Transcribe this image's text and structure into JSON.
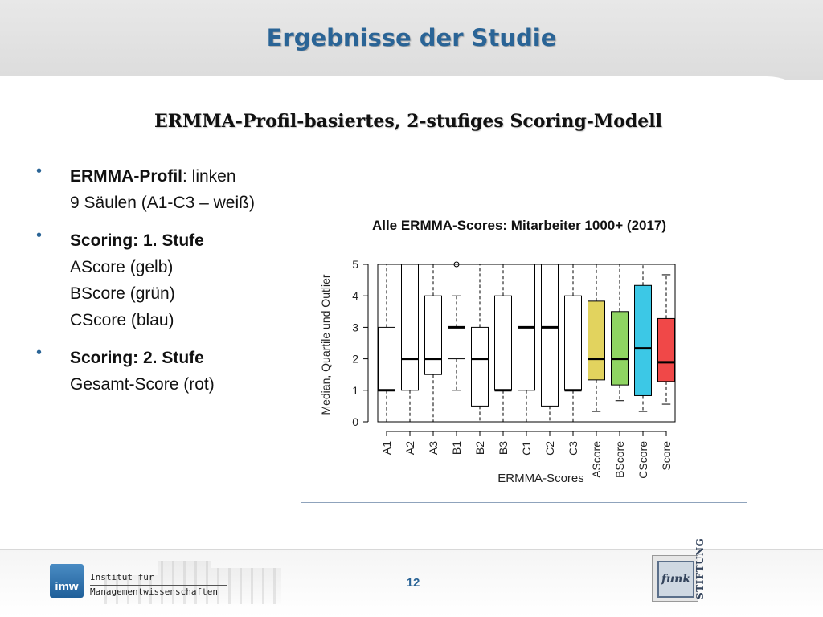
{
  "slide": {
    "title": "Ergebnisse der Studie",
    "subtitle": "ERMMA-Profil-basiertes, 2-stufiges Scoring-Modell",
    "page_number": "12"
  },
  "bullets": [
    {
      "lines": [
        {
          "bold": "ERMMA-Profil",
          "text": ": linken"
        },
        {
          "bold": "",
          "text": "9 Säulen (A1-C3 – weiß)"
        }
      ]
    },
    {
      "lines": [
        {
          "bold": "Scoring: 1. Stufe",
          "text": ""
        },
        {
          "bold": "",
          "text": "AScore (gelb)"
        },
        {
          "bold": "",
          "text": "BScore (grün)"
        },
        {
          "bold": "",
          "text": "CScore (blau)"
        }
      ]
    },
    {
      "lines": [
        {
          "bold": "Scoring: 2. Stufe",
          "text": ""
        },
        {
          "bold": "",
          "text": "Gesamt-Score (rot)"
        }
      ]
    }
  ],
  "footer": {
    "institute_logo_text": "imw",
    "institute_name_line1": "Institut für",
    "institute_name_line2": "Managementwissenschaften",
    "funk_logo_text": "funk",
    "stiftung_text": "STIFTUNG"
  },
  "chart_data": {
    "type": "boxplot",
    "title": "Alle ERMMA-Scores: Mitarbeiter 1000+ (2017)",
    "xlabel": "ERMMA-Scores",
    "ylabel": "Median, Quartile und Outlier",
    "ylim": [
      0,
      5
    ],
    "yticks": [
      0,
      1,
      2,
      3,
      4,
      5
    ],
    "categories": [
      "A1",
      "A2",
      "A3",
      "B1",
      "B2",
      "B3",
      "C1",
      "C2",
      "C3",
      "AScore",
      "BScore",
      "CScore",
      "Score"
    ],
    "boxes": [
      {
        "whisker_low": 0,
        "q1": 1,
        "median": 1,
        "q3": 3,
        "whisker_high": 5,
        "outliers": [],
        "color": "#ffffff"
      },
      {
        "whisker_low": 0,
        "q1": 1,
        "median": 2,
        "q3": 5,
        "whisker_high": 5,
        "outliers": [],
        "color": "#ffffff"
      },
      {
        "whisker_low": 0,
        "q1": 1.5,
        "median": 2,
        "q3": 4,
        "whisker_high": 5,
        "outliers": [],
        "color": "#ffffff"
      },
      {
        "whisker_low": 1,
        "q1": 2,
        "median": 3,
        "q3": 3,
        "whisker_high": 4,
        "outliers": [
          5
        ],
        "color": "#ffffff"
      },
      {
        "whisker_low": 0,
        "q1": 0.5,
        "median": 2,
        "q3": 3,
        "whisker_high": 5,
        "outliers": [],
        "color": "#ffffff"
      },
      {
        "whisker_low": 0,
        "q1": 1,
        "median": 1,
        "q3": 4,
        "whisker_high": 5,
        "outliers": [],
        "color": "#ffffff"
      },
      {
        "whisker_low": 0,
        "q1": 1,
        "median": 3,
        "q3": 5,
        "whisker_high": 5,
        "outliers": [],
        "color": "#ffffff"
      },
      {
        "whisker_low": 0,
        "q1": 0.5,
        "median": 3,
        "q3": 5,
        "whisker_high": 5,
        "outliers": [],
        "color": "#ffffff"
      },
      {
        "whisker_low": 0,
        "q1": 1,
        "median": 1,
        "q3": 4,
        "whisker_high": 5,
        "outliers": [],
        "color": "#ffffff"
      },
      {
        "whisker_low": 0.33,
        "q1": 1.33,
        "median": 2,
        "q3": 3.83,
        "whisker_high": 5,
        "outliers": [],
        "color": "#e2d35e"
      },
      {
        "whisker_low": 0.67,
        "q1": 1.17,
        "median": 2,
        "q3": 3.5,
        "whisker_high": 5,
        "outliers": [],
        "color": "#8fd462"
      },
      {
        "whisker_low": 0.33,
        "q1": 0.83,
        "median": 2.33,
        "q3": 4.33,
        "whisker_high": 5,
        "outliers": [],
        "color": "#3cc8e6"
      },
      {
        "whisker_low": 0.56,
        "q1": 1.28,
        "median": 1.89,
        "q3": 3.28,
        "whisker_high": 4.67,
        "outliers": [],
        "color": "#f04848"
      }
    ],
    "grid": false,
    "legend": "none"
  }
}
